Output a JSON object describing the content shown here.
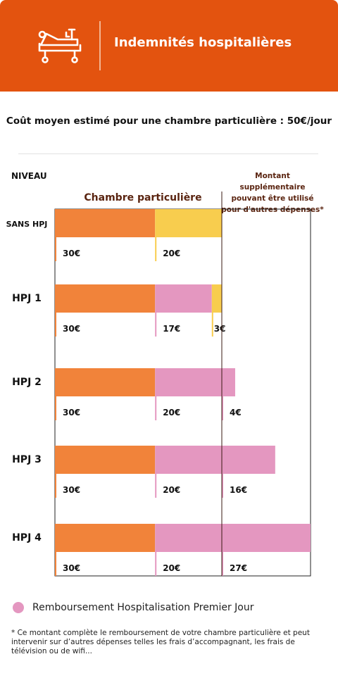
{
  "header": {
    "title": "Indemnités hospitalières",
    "icon": "hospital-bed-icon",
    "background": "#e3530f"
  },
  "subtitle": "Coût moyen estimé pour une chambre particulière : 50€/jour",
  "labels": {
    "niveau": "NIVEAU",
    "montant_line1": "Montant supplémentaire",
    "montant_line2": "pouvant être utilisé",
    "montant_line3": "pour d'autres dépenses*",
    "chambre": "Chambre particulière"
  },
  "chart_data": {
    "type": "bar",
    "orientation": "horizontal",
    "stacked": true,
    "xlim": [
      0,
      50
    ],
    "reference_line": 50,
    "categories": [
      "SANS HPJ",
      "HPJ 1",
      "HPJ 2",
      "HPJ 3",
      "HPJ 4"
    ],
    "rows": [
      {
        "label": "SANS HPJ",
        "segments": [
          {
            "value": 30,
            "label": "30€",
            "color": "#f1833a"
          },
          {
            "value": 20,
            "label": "20€",
            "color": "#f8cd4e"
          }
        ]
      },
      {
        "label": "HPJ 1",
        "segments": [
          {
            "value": 30,
            "label": "30€",
            "color": "#f1833a"
          },
          {
            "value": 17,
            "label": "17€",
            "color": "#e497c0"
          },
          {
            "value": 3,
            "label": "3€",
            "color": "#f8cd4e"
          }
        ]
      },
      {
        "label": "HPJ 2",
        "segments": [
          {
            "value": 30,
            "label": "30€",
            "color": "#f1833a"
          },
          {
            "value": 20,
            "label": "20€",
            "color": "#e497c0"
          },
          {
            "value": 4,
            "label": "4€",
            "color": "#e497c0"
          }
        ]
      },
      {
        "label": "HPJ 3",
        "segments": [
          {
            "value": 30,
            "label": "30€",
            "color": "#f1833a"
          },
          {
            "value": 20,
            "label": "20€",
            "color": "#e497c0"
          },
          {
            "value": 16,
            "label": "16€",
            "color": "#e497c0"
          }
        ]
      },
      {
        "label": "HPJ 4",
        "segments": [
          {
            "value": 30,
            "label": "30€",
            "color": "#f1833a"
          },
          {
            "value": 20,
            "label": "20€",
            "color": "#e497c0"
          },
          {
            "value": 27,
            "label": "27€",
            "color": "#e497c0"
          }
        ]
      }
    ]
  },
  "legend": {
    "label": "Remboursement Hospitalisation Premier Jour",
    "color": "#e497c0"
  },
  "footnote": "* Ce montant complète le remboursement de votre chambre particulière et peut intervenir sur d’autres dépenses telles les frais d’accompagnant, les frais de télévision ou de wifi..."
}
